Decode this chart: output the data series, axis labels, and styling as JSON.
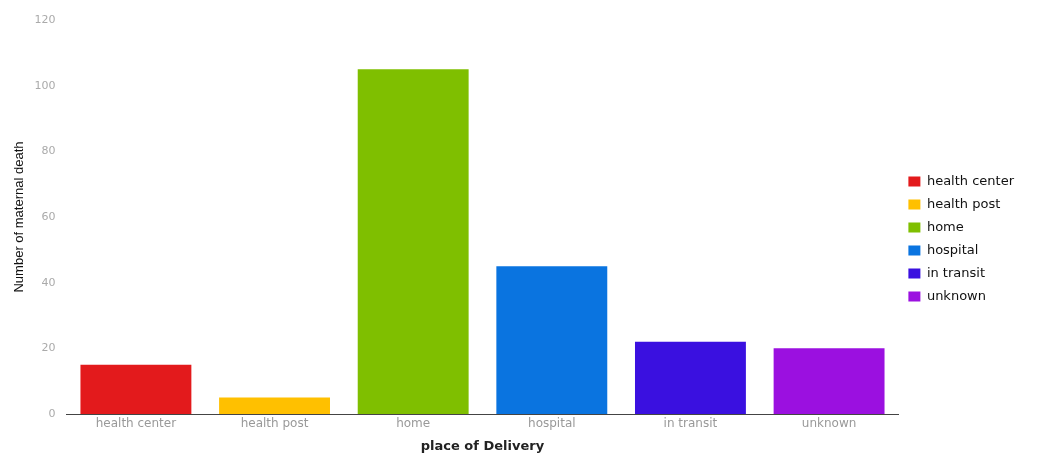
{
  "chart_data": {
    "type": "bar",
    "xlabel": "place of Delivery",
    "ylabel": "Number of maternal death",
    "categories": [
      "health center",
      "health post",
      "home",
      "hospital",
      "in transit",
      "unknown"
    ],
    "series": [
      {
        "name": "health center",
        "color": "#e31a1c",
        "values": [
          15,
          null,
          null,
          null,
          null,
          null
        ]
      },
      {
        "name": "health post",
        "color": "#ffc000",
        "values": [
          null,
          5,
          null,
          null,
          null,
          null
        ]
      },
      {
        "name": "home",
        "color": "#7fbf00",
        "values": [
          null,
          null,
          105,
          null,
          null,
          null
        ]
      },
      {
        "name": "hospital",
        "color": "#0a74e0",
        "values": [
          null,
          null,
          null,
          45,
          null,
          null
        ]
      },
      {
        "name": "in transit",
        "color": "#3a10e0",
        "values": [
          null,
          null,
          null,
          null,
          22,
          null
        ]
      },
      {
        "name": "unknown",
        "color": "#9b10e0",
        "values": [
          null,
          null,
          null,
          null,
          null,
          20
        ]
      }
    ],
    "ylim": [
      0,
      120
    ],
    "yticks": [
      0,
      20,
      40,
      60,
      80,
      100,
      120
    ],
    "grid": false,
    "legend": "right"
  }
}
